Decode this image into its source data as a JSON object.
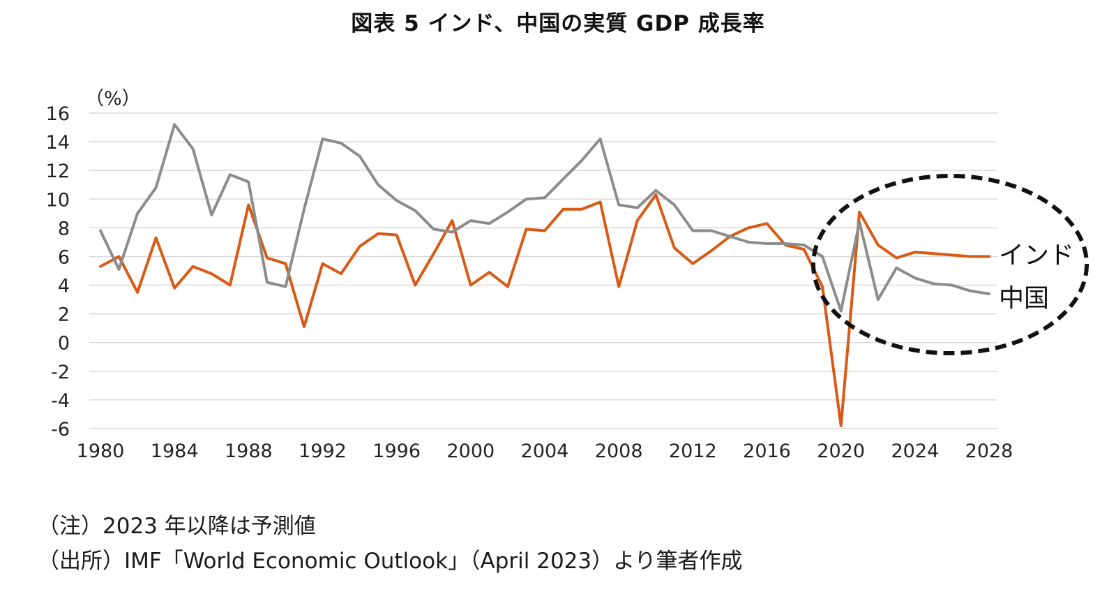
{
  "chart_data": {
    "type": "line",
    "title": "図表 5  インド、中国の実質 GDP 成長率",
    "ylabel": "（%）",
    "xlabel": "",
    "ylim": [
      -6,
      16
    ],
    "yticks": [
      16,
      14,
      12,
      10,
      8,
      6,
      4,
      2,
      0,
      -2,
      -4,
      -6
    ],
    "xlim": [
      1980,
      2028
    ],
    "xticks": [
      1980,
      1984,
      1988,
      1992,
      1996,
      2000,
      2004,
      2008,
      2012,
      2016,
      2020,
      2024,
      2028
    ],
    "grid": true,
    "x": [
      1980,
      1981,
      1982,
      1983,
      1984,
      1985,
      1986,
      1987,
      1988,
      1989,
      1990,
      1991,
      1992,
      1993,
      1994,
      1995,
      1996,
      1997,
      1998,
      1999,
      2000,
      2001,
      2002,
      2003,
      2004,
      2005,
      2006,
      2007,
      2008,
      2009,
      2010,
      2011,
      2012,
      2013,
      2014,
      2015,
      2016,
      2017,
      2018,
      2019,
      2020,
      2021,
      2022,
      2023,
      2024,
      2025,
      2026,
      2027,
      2028
    ],
    "series": [
      {
        "name": "インド",
        "color": "#d85a14",
        "values": [
          5.3,
          6.0,
          3.5,
          7.3,
          3.8,
          5.3,
          4.8,
          4.0,
          9.6,
          5.9,
          5.5,
          1.1,
          5.5,
          4.8,
          6.7,
          7.6,
          7.5,
          4.0,
          6.2,
          8.5,
          4.0,
          4.9,
          3.9,
          7.9,
          7.8,
          9.3,
          9.3,
          9.8,
          3.9,
          8.5,
          10.3,
          6.6,
          5.5,
          6.4,
          7.4,
          8.0,
          8.3,
          6.8,
          6.5,
          3.9,
          -5.8,
          9.1,
          6.8,
          5.9,
          6.3,
          6.2,
          6.1,
          6.0,
          6.0
        ]
      },
      {
        "name": "中国",
        "color": "#8c8c8c",
        "values": [
          7.8,
          5.1,
          9.0,
          10.8,
          15.2,
          13.5,
          8.9,
          11.7,
          11.2,
          4.2,
          3.9,
          9.3,
          14.2,
          13.9,
          13.0,
          11.0,
          9.9,
          9.2,
          7.9,
          7.7,
          8.5,
          8.3,
          9.1,
          10.0,
          10.1,
          11.4,
          12.7,
          14.2,
          9.6,
          9.4,
          10.6,
          9.6,
          7.8,
          7.8,
          7.4,
          7.0,
          6.9,
          6.9,
          6.8,
          6.0,
          2.2,
          8.4,
          3.0,
          5.2,
          4.5,
          4.1,
          4.0,
          3.6,
          3.4
        ]
      }
    ],
    "annotations": {
      "highlight": "dashed-ellipse-around-2019-2028"
    }
  },
  "notes": {
    "note1": "（注）2023 年以降は予測値",
    "note2": "（出所）IMF「World Economic Outlook」（April 2023）より筆者作成"
  }
}
